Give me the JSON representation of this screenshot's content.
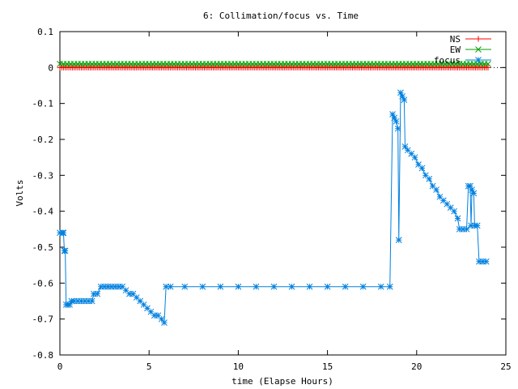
{
  "chart_data": {
    "type": "line",
    "title": "6: Collimation/focus vs. Time",
    "xlabel": "time (Elapse Hours)",
    "ylabel": "Volts",
    "xlim": [
      0,
      25
    ],
    "ylim": [
      -0.8,
      0.1
    ],
    "xticks": [
      0,
      5,
      10,
      15,
      20,
      25
    ],
    "yticks": [
      0.1,
      0,
      -0.1,
      -0.2,
      -0.3,
      -0.4,
      -0.5,
      -0.6,
      -0.7,
      -0.8
    ],
    "grid": false,
    "legend": "top-right",
    "series": [
      {
        "name": "NS",
        "color": "#ff0000",
        "marker": "plus",
        "points": [
          [
            0,
            0
          ],
          [
            24,
            0
          ]
        ],
        "marker_step": 0.1
      },
      {
        "name": "EW",
        "color": "#00a000",
        "marker": "cross",
        "points": [
          [
            0,
            0.01
          ],
          [
            24,
            0.01
          ]
        ],
        "marker_step": 0.2
      },
      {
        "name": "focus",
        "color": "#0080e0",
        "marker": "star",
        "points": [
          [
            0,
            -0.46
          ],
          [
            0.15,
            -0.46
          ],
          [
            0.2,
            -0.46
          ],
          [
            0.25,
            -0.51
          ],
          [
            0.3,
            -0.51
          ],
          [
            0.35,
            -0.66
          ],
          [
            0.45,
            -0.66
          ],
          [
            0.55,
            -0.66
          ],
          [
            0.65,
            -0.65
          ],
          [
            0.8,
            -0.65
          ],
          [
            1.0,
            -0.65
          ],
          [
            1.2,
            -0.65
          ],
          [
            1.4,
            -0.65
          ],
          [
            1.6,
            -0.65
          ],
          [
            1.8,
            -0.65
          ],
          [
            1.9,
            -0.63
          ],
          [
            2.1,
            -0.63
          ],
          [
            2.3,
            -0.61
          ],
          [
            2.5,
            -0.61
          ],
          [
            2.7,
            -0.61
          ],
          [
            2.9,
            -0.61
          ],
          [
            3.1,
            -0.61
          ],
          [
            3.3,
            -0.61
          ],
          [
            3.5,
            -0.61
          ],
          [
            3.7,
            -0.62
          ],
          [
            3.9,
            -0.63
          ],
          [
            4.1,
            -0.63
          ],
          [
            4.3,
            -0.64
          ],
          [
            4.5,
            -0.65
          ],
          [
            4.7,
            -0.66
          ],
          [
            4.9,
            -0.67
          ],
          [
            5.1,
            -0.68
          ],
          [
            5.3,
            -0.69
          ],
          [
            5.5,
            -0.69
          ],
          [
            5.7,
            -0.7
          ],
          [
            5.85,
            -0.71
          ],
          [
            5.95,
            -0.61
          ],
          [
            6.2,
            -0.61
          ],
          [
            7,
            -0.61
          ],
          [
            8,
            -0.61
          ],
          [
            9,
            -0.61
          ],
          [
            10,
            -0.61
          ],
          [
            11,
            -0.61
          ],
          [
            12,
            -0.61
          ],
          [
            13,
            -0.61
          ],
          [
            14,
            -0.61
          ],
          [
            15,
            -0.61
          ],
          [
            16,
            -0.61
          ],
          [
            17,
            -0.61
          ],
          [
            18,
            -0.61
          ],
          [
            18.5,
            -0.61
          ],
          [
            18.65,
            -0.13
          ],
          [
            18.75,
            -0.14
          ],
          [
            18.85,
            -0.15
          ],
          [
            18.95,
            -0.17
          ],
          [
            19.0,
            -0.48
          ],
          [
            19.1,
            -0.07
          ],
          [
            19.2,
            -0.08
          ],
          [
            19.3,
            -0.09
          ],
          [
            19.35,
            -0.22
          ],
          [
            19.5,
            -0.23
          ],
          [
            19.7,
            -0.24
          ],
          [
            19.9,
            -0.25
          ],
          [
            20.1,
            -0.27
          ],
          [
            20.3,
            -0.28
          ],
          [
            20.5,
            -0.3
          ],
          [
            20.7,
            -0.31
          ],
          [
            20.9,
            -0.33
          ],
          [
            21.1,
            -0.34
          ],
          [
            21.3,
            -0.36
          ],
          [
            21.5,
            -0.37
          ],
          [
            21.7,
            -0.38
          ],
          [
            21.9,
            -0.39
          ],
          [
            22.1,
            -0.4
          ],
          [
            22.3,
            -0.42
          ],
          [
            22.4,
            -0.45
          ],
          [
            22.6,
            -0.45
          ],
          [
            22.8,
            -0.45
          ],
          [
            22.9,
            -0.33
          ],
          [
            23.0,
            -0.33
          ],
          [
            23.05,
            -0.44
          ],
          [
            23.1,
            -0.34
          ],
          [
            23.2,
            -0.35
          ],
          [
            23.25,
            -0.44
          ],
          [
            23.4,
            -0.44
          ],
          [
            23.5,
            -0.54
          ],
          [
            23.7,
            -0.54
          ],
          [
            23.9,
            -0.54
          ]
        ]
      }
    ]
  }
}
